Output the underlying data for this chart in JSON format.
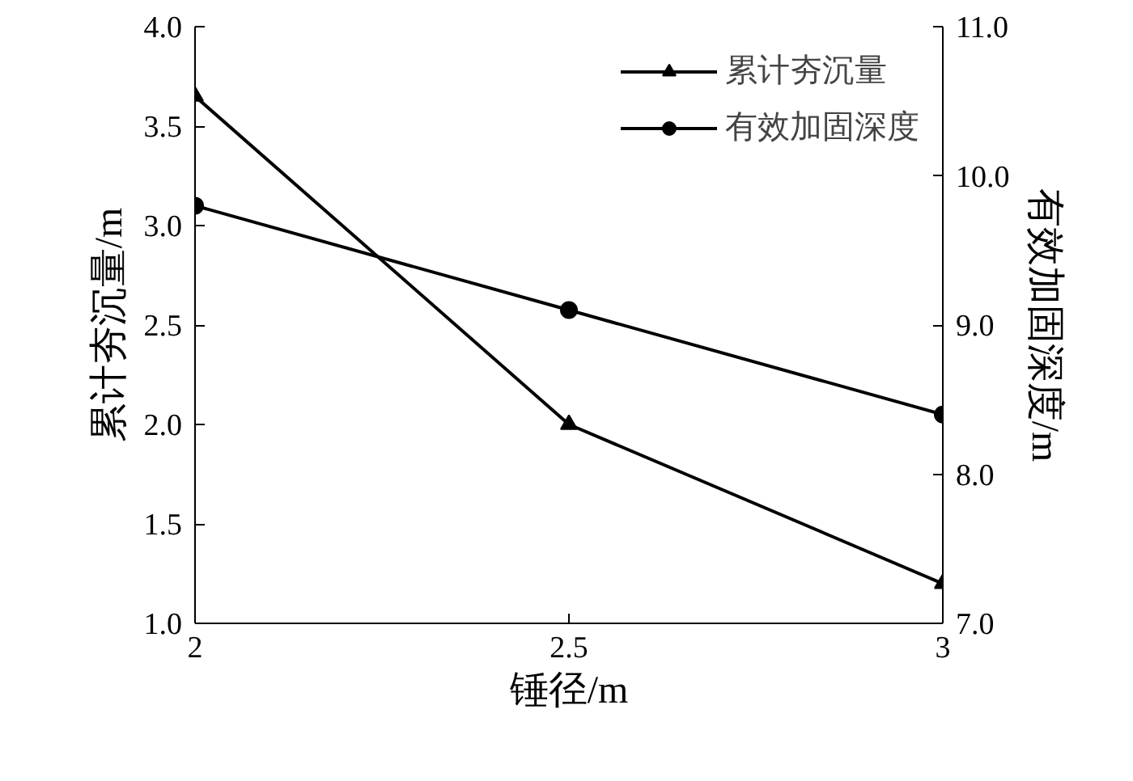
{
  "chart_data": {
    "type": "line",
    "xlabel": "锤径/m",
    "ylabel": "累计夯沉量/m",
    "y2label": "有效加固深度/m",
    "x": [
      2,
      2.5,
      3
    ],
    "xlim": [
      2,
      3
    ],
    "xticks": [
      2,
      2.5,
      3
    ],
    "ylim": [
      1.0,
      4.0
    ],
    "yticks": [
      {
        "value": 1.0,
        "label": "1.0"
      },
      {
        "value": 1.5,
        "label": "1.5"
      },
      {
        "value": 2.0,
        "label": "2.0"
      },
      {
        "value": 2.5,
        "label": "2.5"
      },
      {
        "value": 3.0,
        "label": "3.0"
      },
      {
        "value": 3.5,
        "label": "3.5"
      },
      {
        "value": 4.0,
        "label": "4.0"
      }
    ],
    "y2lim": [
      7.0,
      11.0
    ],
    "y2ticks": [
      {
        "value": 7.0,
        "label": "7.0"
      },
      {
        "value": 8.0,
        "label": "8.0"
      },
      {
        "value": 9.0,
        "label": "9.0"
      },
      {
        "value": 10.0,
        "label": "10.0"
      },
      {
        "value": 11.0,
        "label": "11.0"
      }
    ],
    "series": [
      {
        "name": "累计夯沉量",
        "color": "#000000",
        "marker": "triangle",
        "values": [
          3.65,
          2.0,
          1.2
        ]
      },
      {
        "name": "有效加固深度",
        "color": "#000000",
        "marker": "circle",
        "axis": "y2",
        "values": [
          9.8,
          9.1,
          8.4
        ]
      }
    ],
    "grid": false,
    "legend": "top right",
    "line_style": "solid"
  }
}
